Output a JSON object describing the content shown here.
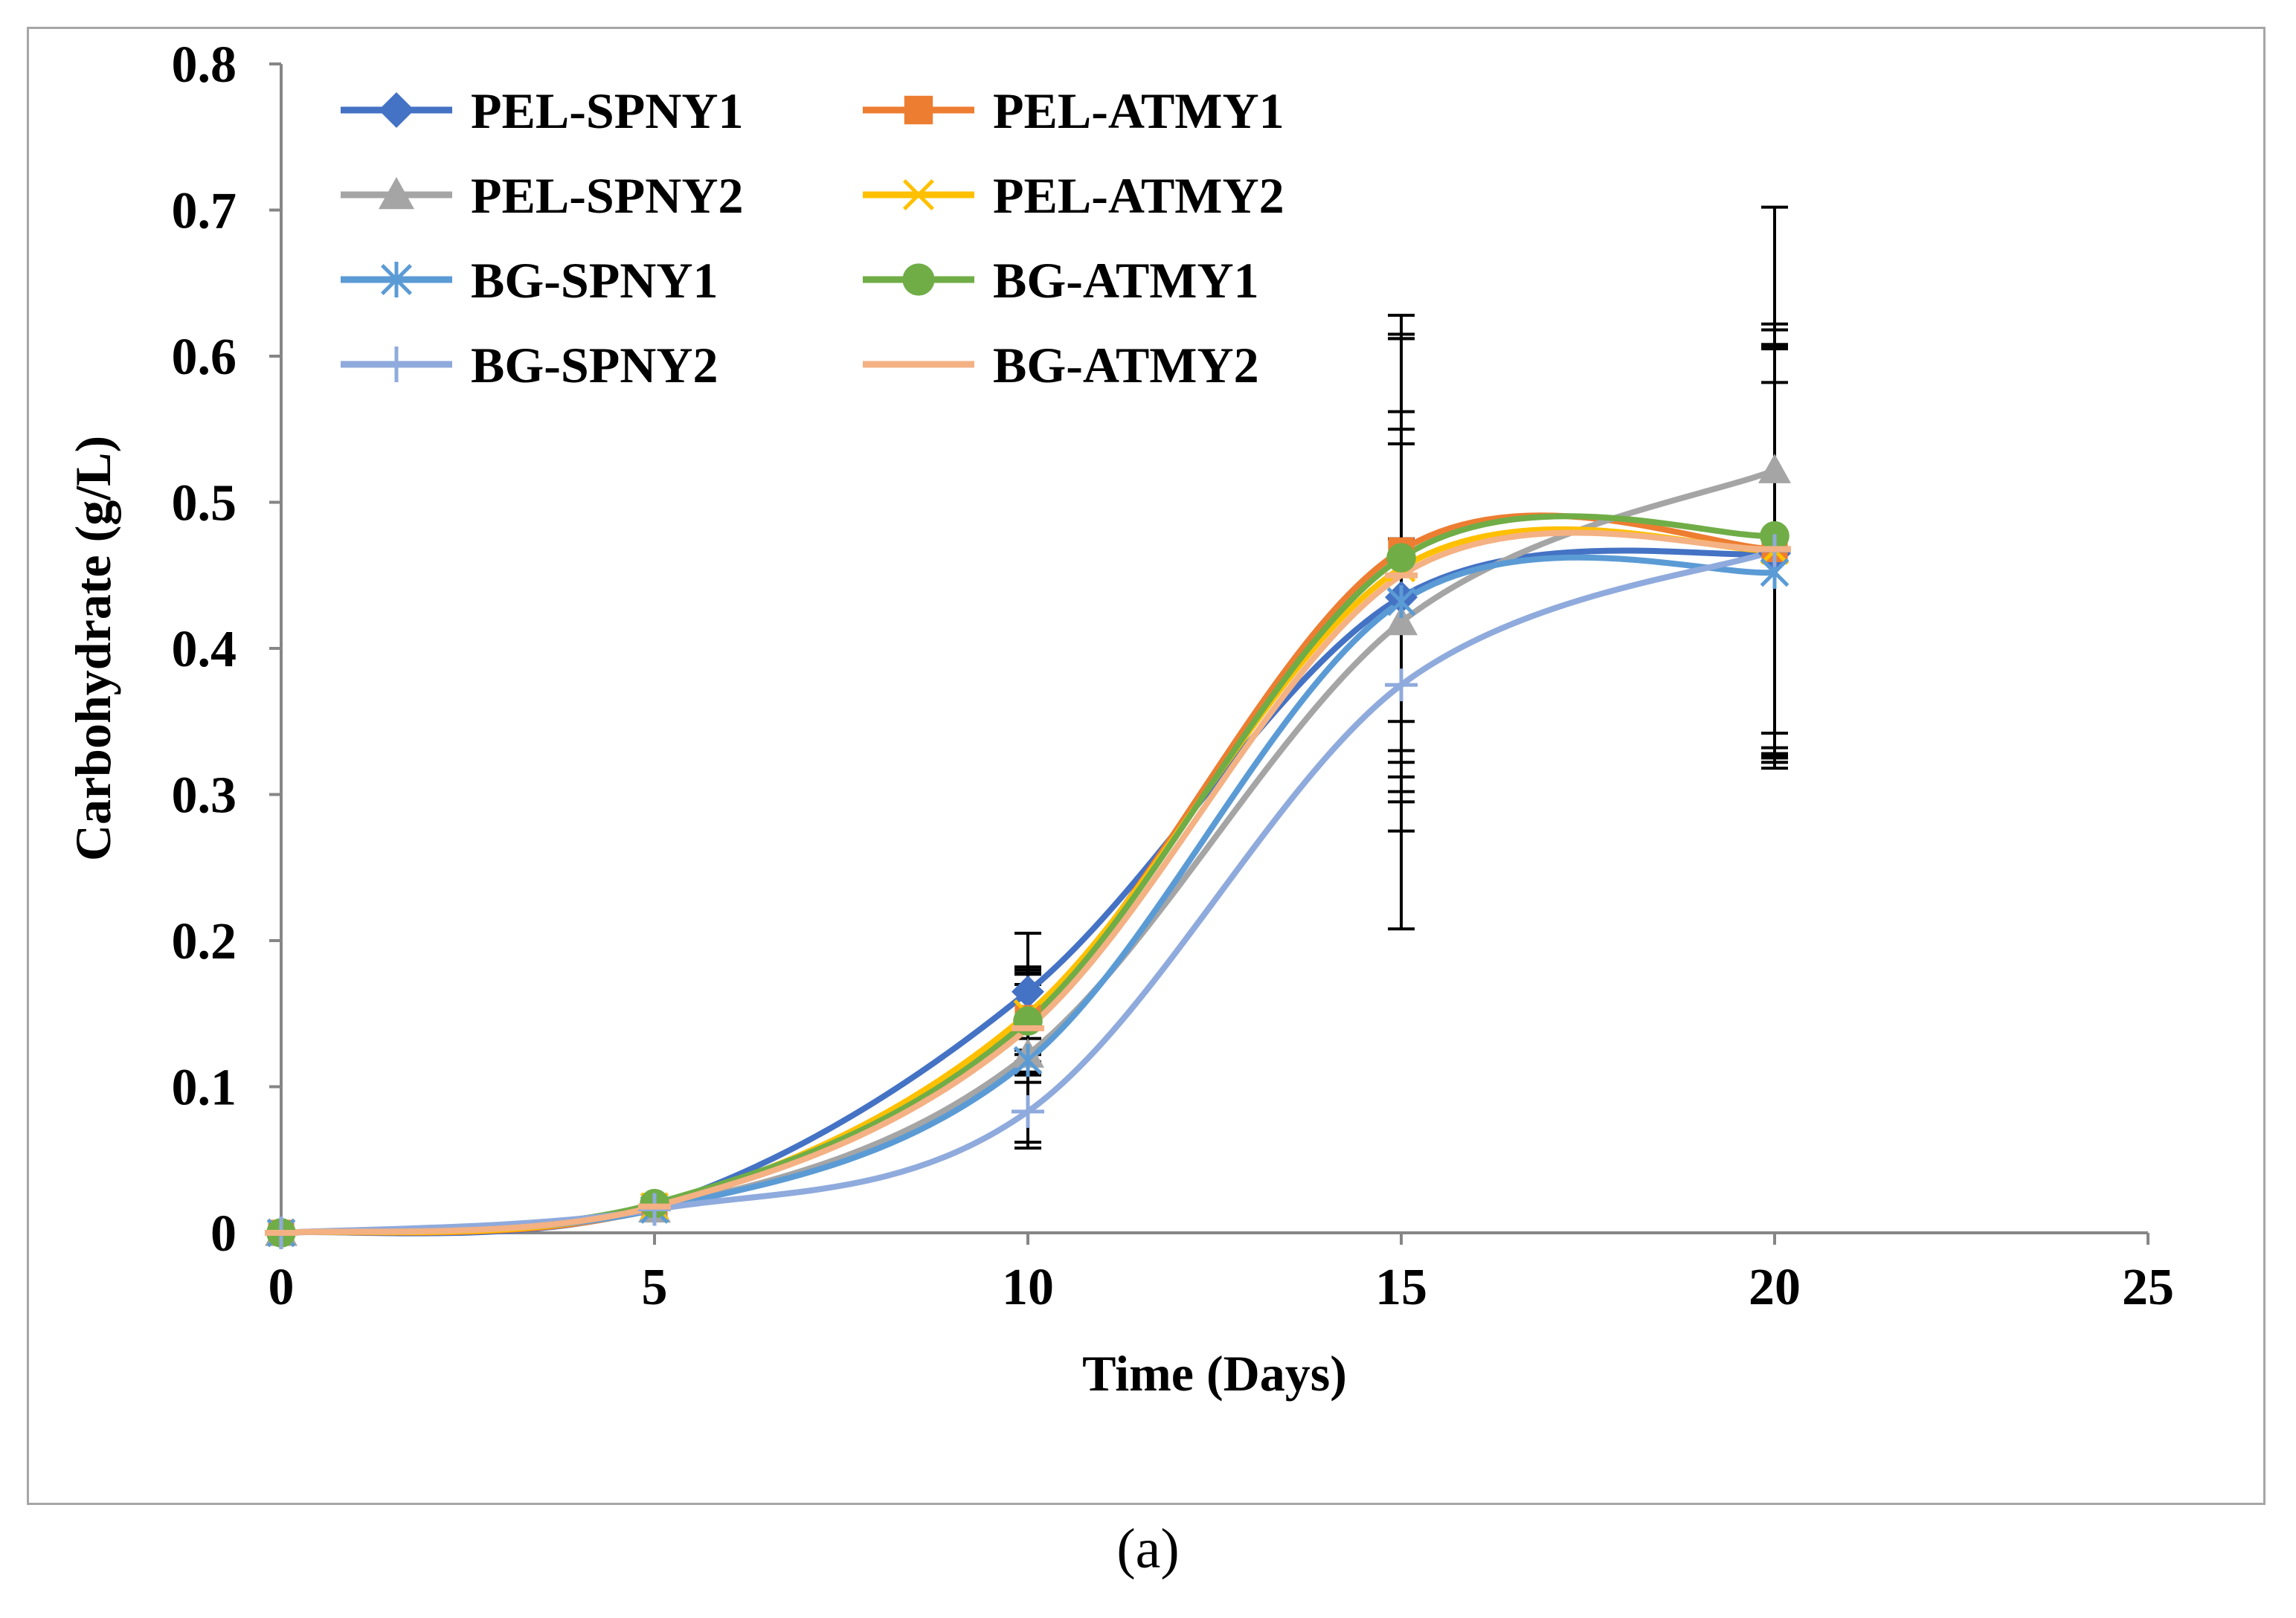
{
  "caption": "(a)",
  "chart_data": {
    "type": "line",
    "title": "",
    "xlabel": "Time (Days)",
    "ylabel": "Carbohydrate (g/L)",
    "xlim": [
      0,
      25
    ],
    "ylim": [
      0,
      0.8
    ],
    "xticks": [
      "0",
      "5",
      "10",
      "15",
      "20",
      "25"
    ],
    "yticks": [
      "0",
      "0.1",
      "0.2",
      "0.3",
      "0.4",
      "0.5",
      "0.6",
      "0.7",
      "0.8"
    ],
    "grid": false,
    "legend_position": "top-left",
    "smooth": true,
    "x": [
      0,
      5,
      10,
      15,
      20
    ],
    "series": [
      {
        "name": "PEL-SPNY1",
        "color": "#4472c4",
        "marker": "diamond",
        "values": [
          0,
          0.018,
          0.165,
          0.435,
          0.465
        ],
        "errors": [
          0,
          0,
          0.04,
          0.105,
          0.14
        ]
      },
      {
        "name": "PEL-ATMY1",
        "color": "#ed7d31",
        "marker": "square",
        "values": [
          0,
          0.017,
          0.147,
          0.467,
          0.468
        ],
        "errors": [
          0,
          0,
          0.03,
          0.145,
          0.15
        ]
      },
      {
        "name": "PEL-SPNY2",
        "color": "#a5a5a5",
        "marker": "triangle",
        "values": [
          0,
          0.016,
          0.122,
          0.418,
          0.522
        ],
        "errors": [
          0,
          0,
          0.06,
          0.21,
          0.18
        ]
      },
      {
        "name": "PEL-ATMY2",
        "color": "#ffc000",
        "marker": "x",
        "values": [
          0,
          0.018,
          0.15,
          0.455,
          0.467
        ],
        "errors": [
          0,
          0,
          0.028,
          0.16,
          0.14
        ]
      },
      {
        "name": "BG-SPNY1",
        "color": "#5b9bd5",
        "marker": "star",
        "values": [
          0,
          0.016,
          0.118,
          0.432,
          0.452
        ],
        "errors": [
          0,
          0,
          0.015,
          0.13,
          0.13
        ]
      },
      {
        "name": "BG-ATMY1",
        "color": "#70ad47",
        "marker": "circle",
        "values": [
          0,
          0.02,
          0.145,
          0.462,
          0.477
        ],
        "errors": [
          0,
          0,
          0.035,
          0.15,
          0.145
        ]
      },
      {
        "name": "BG-SPNY2",
        "color": "#8faadc",
        "marker": "plus",
        "values": [
          0,
          0.016,
          0.083,
          0.375,
          0.467
        ],
        "errors": [
          0,
          0,
          0.025,
          0.1,
          0.14
        ]
      },
      {
        "name": "BG-ATMY2",
        "color": "#f4b183",
        "marker": "dash",
        "values": [
          0,
          0.018,
          0.14,
          0.45,
          0.468
        ],
        "errors": [
          0,
          0,
          0.03,
          0.1,
          0.14
        ]
      }
    ]
  }
}
